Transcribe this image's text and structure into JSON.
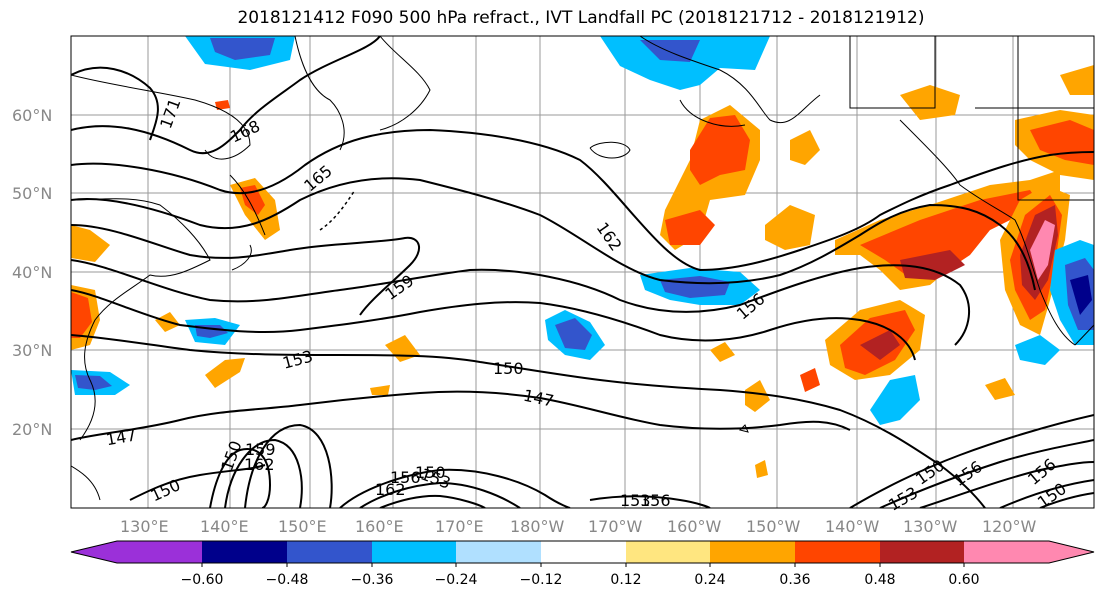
{
  "title": "2018121412 F090 500 hPa refract., IVT Landfall PC (2018121712 - 2018121912)",
  "map": {
    "lat_labels": [
      "60°N",
      "50°N",
      "40°N",
      "30°N",
      "20°N"
    ],
    "lon_labels": [
      "130°E",
      "140°E",
      "150°E",
      "160°E",
      "170°E",
      "180°W",
      "170°W",
      "160°W",
      "150°W",
      "140°W",
      "130°W",
      "120°W"
    ],
    "contour_labels": [
      "171",
      "168",
      "165",
      "162",
      "159",
      "156",
      "153",
      "150",
      "147",
      "147",
      "150",
      "159",
      "162",
      "150",
      "153",
      "156",
      "150",
      "156",
      "153",
      "156",
      "150",
      "162",
      "150",
      "153",
      "156"
    ]
  },
  "colorbar": {
    "tick_labels": [
      "−0.60",
      "−0.48",
      "−0.36",
      "−0.24",
      "−0.12",
      "0.12",
      "0.24",
      "0.36",
      "0.48",
      "0.60"
    ],
    "colors": [
      "#9b30d9",
      "#00008b",
      "#3355cc",
      "#00bfff",
      "#b0e0ff",
      "#ffffff",
      "#ffe680",
      "#ffa500",
      "#ff4500",
      "#b22222",
      "#ff88b0"
    ]
  }
}
